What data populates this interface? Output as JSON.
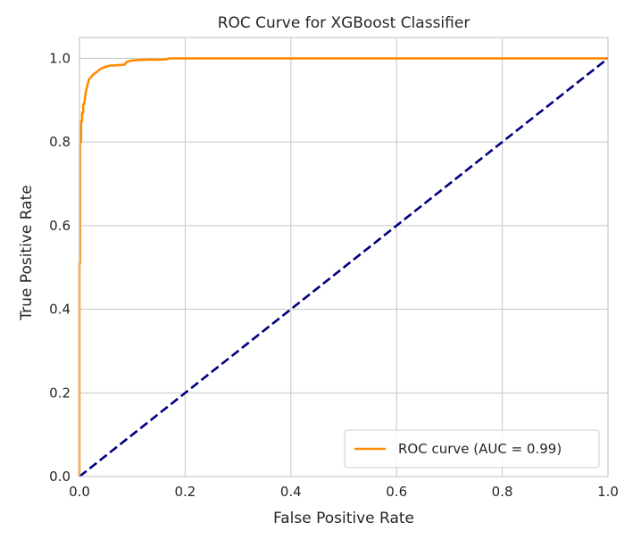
{
  "chart_data": {
    "type": "line",
    "title": "ROC Curve for XGBoost Classifier",
    "xlabel": "False Positive Rate",
    "ylabel": "True Positive Rate",
    "xlim": [
      0.0,
      1.0
    ],
    "ylim": [
      0.0,
      1.05
    ],
    "xticks": [
      "0.0",
      "0.2",
      "0.4",
      "0.6",
      "0.8",
      "1.0"
    ],
    "yticks": [
      "0.0",
      "0.2",
      "0.4",
      "0.6",
      "0.8",
      "1.0"
    ],
    "grid": true,
    "legend_position": "lower-right",
    "series": [
      {
        "name": "ROC curve (AUC = 0.99)",
        "color": "#ff8c00",
        "style": "solid",
        "x": [
          0.0,
          0.0,
          0.001,
          0.001,
          0.003,
          0.003,
          0.005,
          0.005,
          0.007,
          0.007,
          0.009,
          0.01,
          0.012,
          0.014,
          0.016,
          0.018,
          0.022,
          0.025,
          0.03,
          0.035,
          0.04,
          0.045,
          0.05,
          0.055,
          0.06,
          0.065,
          0.075,
          0.085,
          0.09,
          0.1,
          0.11,
          0.13,
          0.15,
          0.165,
          0.17,
          0.2,
          0.3,
          0.5,
          0.7,
          0.9,
          1.0
        ],
        "y": [
          0.0,
          0.51,
          0.51,
          0.8,
          0.8,
          0.85,
          0.85,
          0.87,
          0.87,
          0.89,
          0.89,
          0.9,
          0.92,
          0.93,
          0.94,
          0.95,
          0.955,
          0.96,
          0.965,
          0.97,
          0.975,
          0.978,
          0.98,
          0.982,
          0.983,
          0.983,
          0.984,
          0.985,
          0.992,
          0.995,
          0.996,
          0.997,
          0.997,
          0.998,
          1.0,
          1.0,
          1.0,
          1.0,
          1.0,
          1.0,
          1.0
        ]
      },
      {
        "color": "#000080",
        "style": "dashed",
        "x": [
          0.0,
          1.0
        ],
        "y": [
          0.0,
          1.0
        ]
      }
    ]
  }
}
